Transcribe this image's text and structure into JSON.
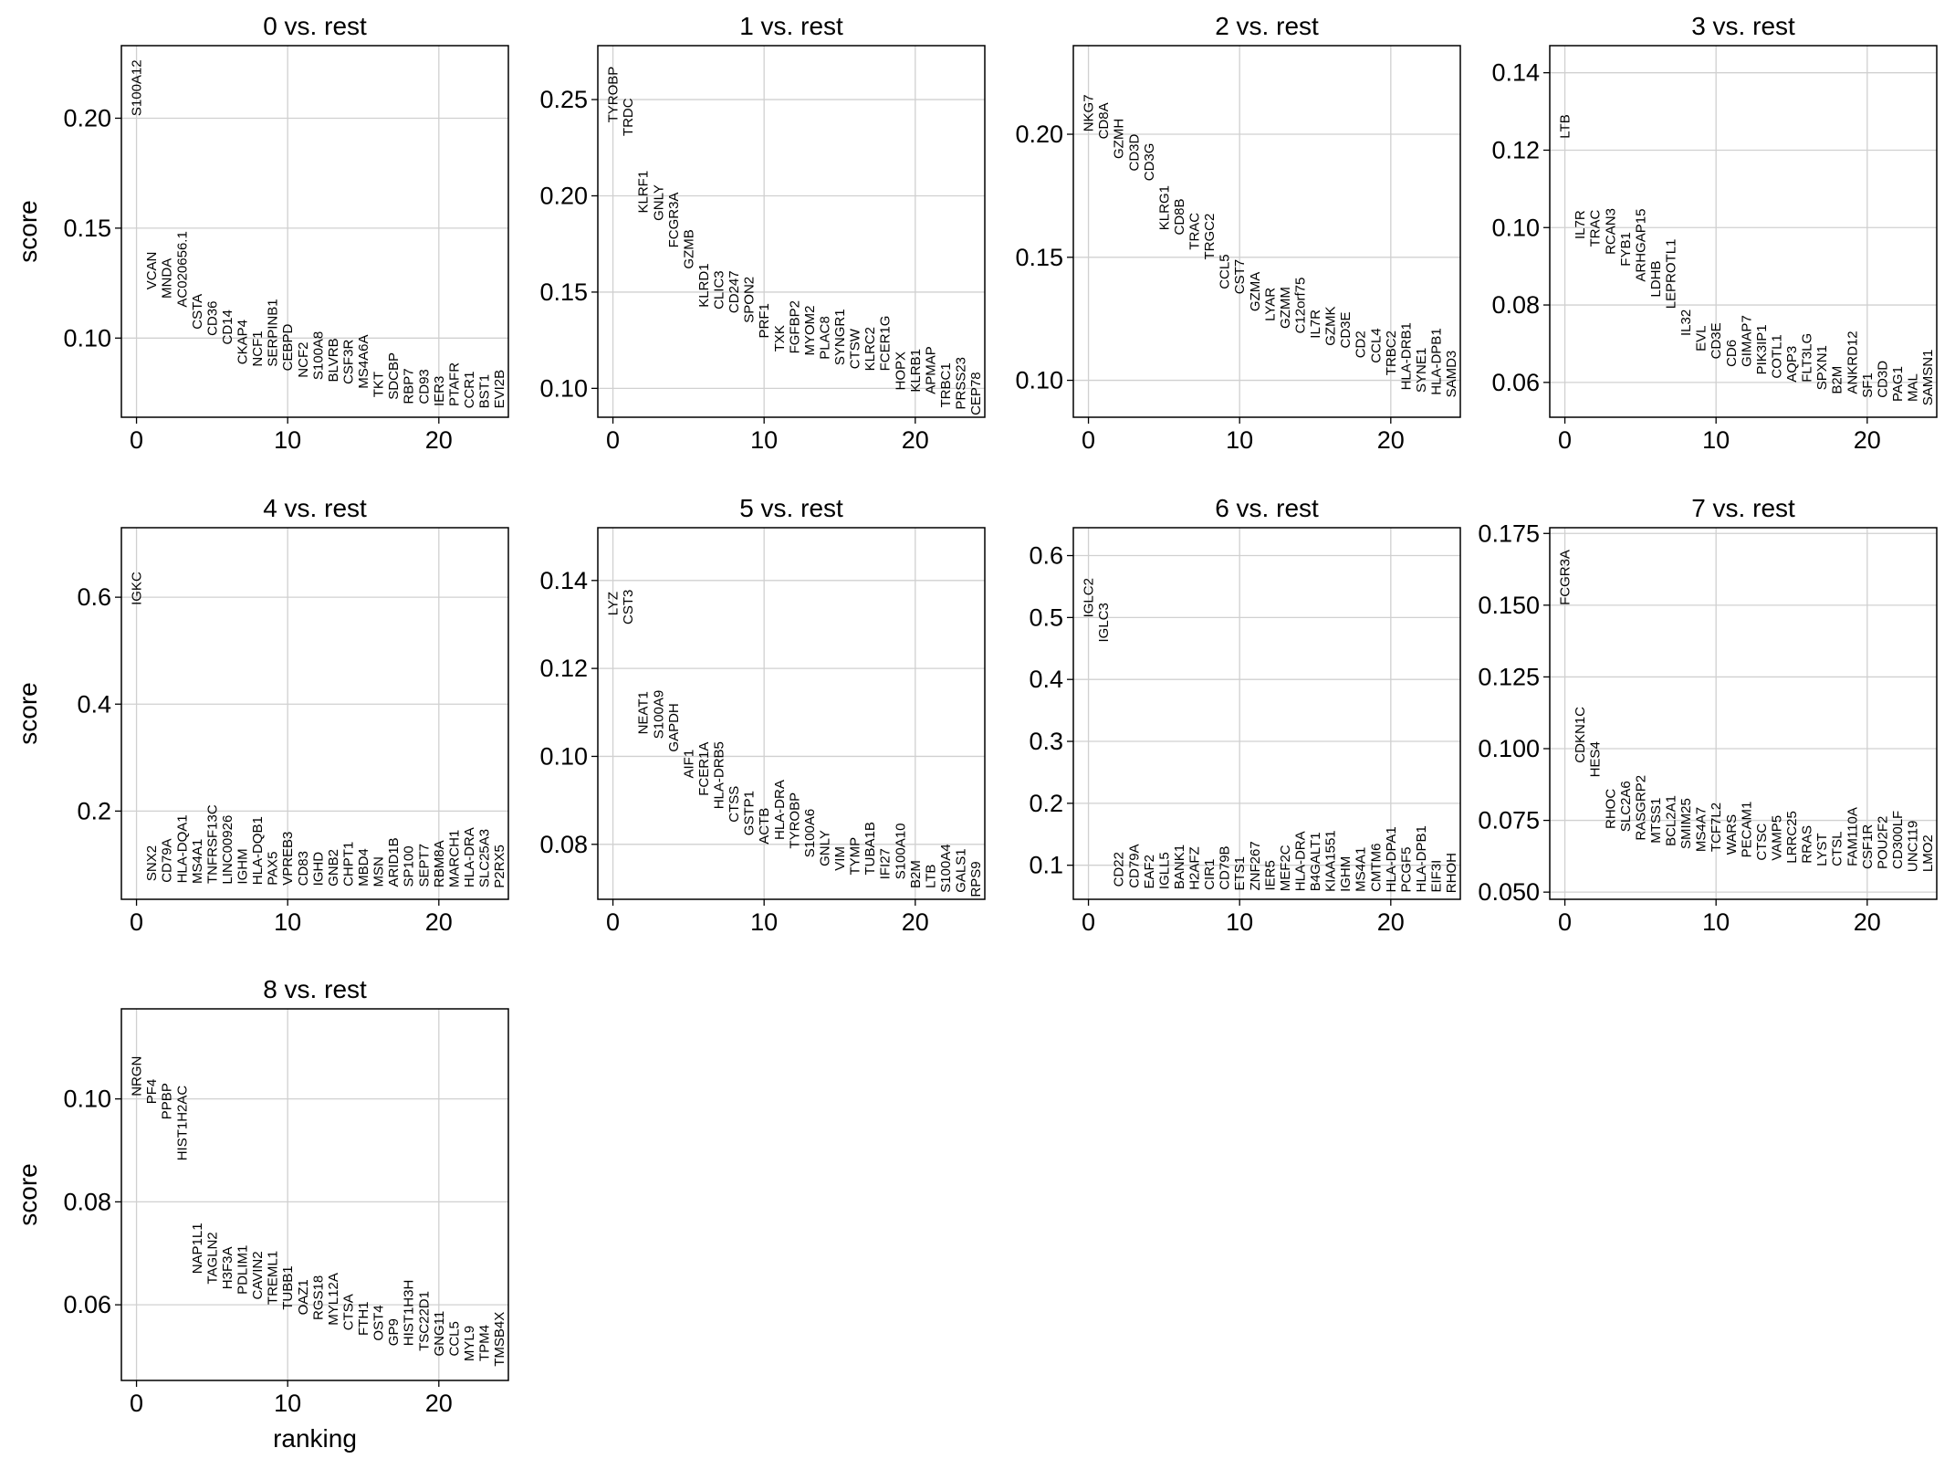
{
  "chart_data": [
    {
      "type": "scatter",
      "title": "0 vs. rest",
      "xlabel": "",
      "ylabel": "score",
      "xlim": [
        -1,
        24.6
      ],
      "ylim": [
        0.064,
        0.233
      ],
      "yticks": [
        0.1,
        0.15,
        0.2
      ],
      "ytick_labels": [
        "0.10",
        "0.15",
        "0.20"
      ],
      "xticks": [
        0,
        10,
        20
      ],
      "xtick_labels": [
        "0",
        "10",
        "20"
      ],
      "grid": true,
      "genes": [
        "S100A12",
        "VCAN",
        "MNDA",
        "AC020656.1",
        "CSTA",
        "CD36",
        "CD14",
        "CKAP4",
        "NCF1",
        "SERPINB1",
        "CEBPD",
        "NCF2",
        "S100A8",
        "BLVRB",
        "CSF3R",
        "MS4A6A",
        "TKT",
        "SDCBP",
        "RBP7",
        "CD93",
        "IER3",
        "PTAFR",
        "CCR1",
        "BST1",
        "EVI2B"
      ],
      "scores": [
        0.201,
        0.122,
        0.118,
        0.114,
        0.104,
        0.101,
        0.097,
        0.088,
        0.087,
        0.087,
        0.085,
        0.082,
        0.081,
        0.08,
        0.079,
        0.077,
        0.073,
        0.072,
        0.07,
        0.07,
        0.069,
        0.069,
        0.068,
        0.068,
        0.068
      ]
    },
    {
      "type": "scatter",
      "title": "1 vs. rest",
      "xlabel": "",
      "ylabel": "",
      "xlim": [
        -1,
        24.6
      ],
      "ylim": [
        0.085,
        0.278
      ],
      "yticks": [
        0.1,
        0.15,
        0.2,
        0.25
      ],
      "ytick_labels": [
        "0.10",
        "0.15",
        "0.20",
        "0.25"
      ],
      "xticks": [
        0,
        10,
        20
      ],
      "xtick_labels": [
        "0",
        "10",
        "20"
      ],
      "grid": true,
      "genes": [
        "TYROBP",
        "TRDC",
        "KLRF1",
        "GNLY",
        "FCGR3A",
        "GZMB",
        "KLRD1",
        "CLIC3",
        "CD247",
        "SPON2",
        "PRF1",
        "TXK",
        "FGFBP2",
        "MYOM2",
        "PLAC8",
        "SYNGR1",
        "CTSW",
        "KLRC2",
        "FCER1G",
        "HOPX",
        "KLRB1",
        "APMAP",
        "TRBC1",
        "PRSS23",
        "CEP78"
      ],
      "scores": [
        0.238,
        0.231,
        0.191,
        0.187,
        0.173,
        0.162,
        0.142,
        0.141,
        0.139,
        0.134,
        0.126,
        0.119,
        0.118,
        0.117,
        0.115,
        0.112,
        0.11,
        0.109,
        0.109,
        0.099,
        0.098,
        0.097,
        0.09,
        0.089,
        0.086
      ]
    },
    {
      "type": "scatter",
      "title": "2 vs. rest",
      "xlabel": "",
      "ylabel": "",
      "xlim": [
        -1,
        24.6
      ],
      "ylim": [
        0.085,
        0.236
      ],
      "yticks": [
        0.1,
        0.15,
        0.2
      ],
      "ytick_labels": [
        "0.10",
        "0.15",
        "0.20"
      ],
      "xticks": [
        0,
        10,
        20
      ],
      "xtick_labels": [
        "0",
        "10",
        "20"
      ],
      "grid": true,
      "genes": [
        "NKG7",
        "CD8A",
        "GZMH",
        "CD3D",
        "CD3G",
        "KLRG1",
        "CD8B",
        "TRAC",
        "TRGC2",
        "CCL5",
        "CST7",
        "GZMA",
        "LYAR",
        "GZMM",
        "C12orf75",
        "IL7R",
        "GZMK",
        "CD3E",
        "CD2",
        "CCL4",
        "TRBC2",
        "HLA-DRB1",
        "SYNE1",
        "HLA-DPB1",
        "SAMD3"
      ],
      "scores": [
        0.201,
        0.198,
        0.19,
        0.185,
        0.181,
        0.161,
        0.159,
        0.153,
        0.149,
        0.137,
        0.135,
        0.128,
        0.124,
        0.121,
        0.119,
        0.117,
        0.114,
        0.113,
        0.109,
        0.107,
        0.102,
        0.096,
        0.095,
        0.094,
        0.093
      ]
    },
    {
      "type": "scatter",
      "title": "3 vs. rest",
      "xlabel": "",
      "ylabel": "",
      "xlim": [
        -1,
        24.6
      ],
      "ylim": [
        0.051,
        0.147
      ],
      "yticks": [
        0.06,
        0.08,
        0.1,
        0.12,
        0.14
      ],
      "ytick_labels": [
        "0.06",
        "0.08",
        "0.10",
        "0.12",
        "0.14"
      ],
      "xticks": [
        0,
        10,
        20
      ],
      "xtick_labels": [
        "0",
        "10",
        "20"
      ],
      "grid": true,
      "genes": [
        "LTB",
        "IL7R",
        "TRAC",
        "RCAN3",
        "FYB1",
        "ARHGAP15",
        "LDHB",
        "LEPROTL1",
        "IL32",
        "EVL",
        "CD3E",
        "CD6",
        "GIMAP7",
        "PIK3IP1",
        "COTL1",
        "AQP3",
        "FLT3LG",
        "SPXN1",
        "B2M",
        "ANKRD12",
        "SF1",
        "CD3D",
        "PAG1",
        "MAL",
        "SAMSN1"
      ],
      "scores": [
        0.123,
        0.097,
        0.095,
        0.093,
        0.09,
        0.086,
        0.082,
        0.079,
        0.072,
        0.068,
        0.066,
        0.064,
        0.064,
        0.062,
        0.061,
        0.06,
        0.06,
        0.058,
        0.057,
        0.057,
        0.056,
        0.056,
        0.055,
        0.055,
        0.054
      ]
    },
    {
      "type": "scatter",
      "title": "4 vs. rest",
      "xlabel": "",
      "ylabel": "score",
      "xlim": [
        -1,
        24.6
      ],
      "ylim": [
        0.035,
        0.73
      ],
      "yticks": [
        0.2,
        0.4,
        0.6
      ],
      "ytick_labels": [
        "0.2",
        "0.4",
        "0.6"
      ],
      "xticks": [
        0,
        10,
        20
      ],
      "xtick_labels": [
        "0",
        "10",
        "20"
      ],
      "grid": true,
      "genes": [
        "IGKC",
        "SNX2",
        "CD79A",
        "HLA-DQA1",
        "MS4A1",
        "TNFRSF13C",
        "LINC00926",
        "IGHM",
        "HLA-DQB1",
        "PAX5",
        "VPREB3",
        "CD83",
        "IGHD",
        "GNB2",
        "CHPT1",
        "MBD4",
        "MSN",
        "ARID1B",
        "SP100",
        "SEPT7",
        "RBM8A",
        "MARCH1",
        "HLA-DRA",
        "SLC25A3",
        "P2RX5"
      ],
      "scores": [
        0.585,
        0.069,
        0.066,
        0.065,
        0.064,
        0.064,
        0.063,
        0.063,
        0.062,
        0.061,
        0.061,
        0.06,
        0.06,
        0.059,
        0.059,
        0.059,
        0.058,
        0.058,
        0.058,
        0.058,
        0.057,
        0.057,
        0.057,
        0.057,
        0.056
      ]
    },
    {
      "type": "scatter",
      "title": "5 vs. rest",
      "xlabel": "",
      "ylabel": "",
      "xlim": [
        -1,
        24.6
      ],
      "ylim": [
        0.0675,
        0.152
      ],
      "yticks": [
        0.08,
        0.1,
        0.12,
        0.14
      ],
      "ytick_labels": [
        "0.08",
        "0.10",
        "0.12",
        "0.14"
      ],
      "xticks": [
        0,
        10,
        20
      ],
      "xtick_labels": [
        "0",
        "10",
        "20"
      ],
      "grid": true,
      "genes": [
        "LYZ",
        "CST3",
        "NEAT1",
        "S100A9",
        "GAPDH",
        "AIF1",
        "FCER1A",
        "HLA-DRB5",
        "CTSS",
        "GSTP1",
        "ACTB",
        "HLA-DRA",
        "TYROBP",
        "S100A6",
        "GNLY",
        "VIM",
        "TYMP",
        "TUBA1B",
        "IFI27",
        "S100A10",
        "B2M",
        "LTB",
        "S100A4",
        "GALS1",
        "RPS9"
      ],
      "scores": [
        0.132,
        0.13,
        0.105,
        0.104,
        0.101,
        0.095,
        0.091,
        0.088,
        0.085,
        0.082,
        0.08,
        0.081,
        0.079,
        0.077,
        0.075,
        0.074,
        0.073,
        0.073,
        0.072,
        0.072,
        0.07,
        0.07,
        0.069,
        0.069,
        0.068
      ]
    },
    {
      "type": "scatter",
      "title": "6 vs. rest",
      "xlabel": "",
      "ylabel": "",
      "xlim": [
        -1,
        24.6
      ],
      "ylim": [
        0.045,
        0.645
      ],
      "yticks": [
        0.1,
        0.2,
        0.3,
        0.4,
        0.5,
        0.6
      ],
      "ytick_labels": [
        "0.1",
        "0.2",
        "0.3",
        "0.4",
        "0.5",
        "0.6"
      ],
      "xticks": [
        0,
        10,
        20
      ],
      "xtick_labels": [
        "0",
        "10",
        "20"
      ],
      "grid": true,
      "genes": [
        "IGLC2",
        "IGLC3",
        "CD22",
        "CD79A",
        "EAF2",
        "IGLL5",
        "BANK1",
        "H2AFZ",
        "CIR1",
        "CD79B",
        "ETS1",
        "ZNF267",
        "IER5",
        "MEF2C",
        "HLA-DRA",
        "B4GALT1",
        "KIAA1551",
        "IGHM",
        "MS4A1",
        "CMTM6",
        "HLA-DPA1",
        "PCGF5",
        "HLA-DPB1",
        "EIF3I",
        "RHOH"
      ],
      "scores": [
        0.5,
        0.46,
        0.065,
        0.063,
        0.062,
        0.061,
        0.061,
        0.06,
        0.06,
        0.06,
        0.059,
        0.059,
        0.059,
        0.058,
        0.058,
        0.058,
        0.057,
        0.057,
        0.057,
        0.057,
        0.056,
        0.056,
        0.056,
        0.056,
        0.055
      ]
    },
    {
      "type": "scatter",
      "title": "7 vs. rest",
      "xlabel": "",
      "ylabel": "",
      "xlim": [
        -1,
        24.6
      ],
      "ylim": [
        0.0475,
        0.177
      ],
      "yticks": [
        0.05,
        0.075,
        0.1,
        0.125,
        0.15,
        0.175
      ],
      "ytick_labels": [
        "0.050",
        "0.075",
        "0.100",
        "0.125",
        "0.150",
        "0.175"
      ],
      "xticks": [
        0,
        10,
        20
      ],
      "xtick_labels": [
        "0",
        "10",
        "20"
      ],
      "grid": true,
      "genes": [
        "FCGR3A",
        "CDKN1C",
        "HES4",
        "RHOC",
        "SLC2A6",
        "RASGRP2",
        "MTSS1",
        "BCL2A1",
        "SMIM25",
        "MS4A7",
        "TCF7L2",
        "WARS",
        "PECAM1",
        "CTSC",
        "VAMP5",
        "LRRC25",
        "RRAS",
        "LYST",
        "CTSL",
        "FAM110A",
        "CSF1R",
        "POU2F2",
        "CD300LF",
        "UNC119",
        "LMO2"
      ],
      "scores": [
        0.15,
        0.095,
        0.09,
        0.072,
        0.071,
        0.068,
        0.067,
        0.066,
        0.065,
        0.064,
        0.064,
        0.063,
        0.062,
        0.061,
        0.061,
        0.06,
        0.06,
        0.059,
        0.059,
        0.059,
        0.058,
        0.058,
        0.058,
        0.057,
        0.057
      ]
    },
    {
      "type": "scatter",
      "title": "8 vs. rest",
      "xlabel": "ranking",
      "ylabel": "score",
      "xlim": [
        -1,
        24.6
      ],
      "ylim": [
        0.0453,
        0.1175
      ],
      "yticks": [
        0.06,
        0.08,
        0.1
      ],
      "ytick_labels": [
        "0.06",
        "0.08",
        "0.10"
      ],
      "xticks": [
        0,
        10,
        20
      ],
      "xtick_labels": [
        "0",
        "10",
        "20"
      ],
      "grid": true,
      "genes": [
        "NRGN",
        "PF4",
        "PPBP",
        "HIST1H2AC",
        "NAP1L1",
        "TAGLN2",
        "H3F3A",
        "PDLIM1",
        "CAVIN2",
        "TREML1",
        "TUBB1",
        "OAZ1",
        "RGS18",
        "MYL12A",
        "CTSA",
        "FTH1",
        "OST4",
        "GP9",
        "HIST1H3H",
        "TSC22D1",
        "GNG11",
        "CCL5",
        "MYL9",
        "TPM4",
        "TMSB4X"
      ],
      "scores": [
        0.1005,
        0.099,
        0.096,
        0.088,
        0.066,
        0.064,
        0.063,
        0.062,
        0.061,
        0.06,
        0.059,
        0.058,
        0.057,
        0.056,
        0.055,
        0.054,
        0.053,
        0.052,
        0.052,
        0.051,
        0.05,
        0.05,
        0.049,
        0.049,
        0.048
      ]
    }
  ]
}
